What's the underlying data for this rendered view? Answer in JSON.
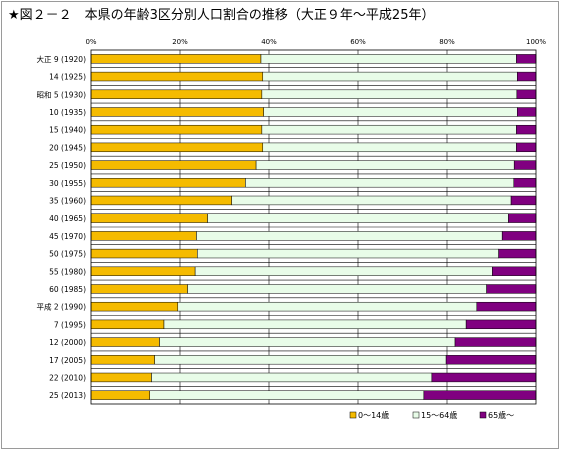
{
  "chart_data": {
    "type": "bar",
    "orientation": "horizontal",
    "stacked": "percent",
    "title": "★図２－２　本県の年齢3区分別人口割合の推移（大正９年～平成25年）",
    "x_ticks": [
      "0%",
      "20%",
      "40%",
      "60%",
      "80%",
      "100%"
    ],
    "xlim": [
      0,
      100
    ],
    "grid": true,
    "legend_position": "bottom-right",
    "categories": [
      "大正 9 (1920)",
      "14 (1925)",
      "昭和 5 (1930)",
      "10 (1935)",
      "15 (1940)",
      "20 (1945)",
      "25 (1950)",
      "30 (1955)",
      "35 (1960)",
      "40 (1965)",
      "45 (1970)",
      "50 (1975)",
      "55 (1980)",
      "60 (1985)",
      "平成 2 (1990)",
      "7 (1995)",
      "12 (2000)",
      "17 (2005)",
      "22 (2010)",
      "25 (2013)"
    ],
    "series": [
      {
        "name": "0～14歳",
        "color": "#f5bb00",
        "values": [
          38.2,
          38.6,
          38.4,
          38.8,
          38.4,
          38.6,
          37.1,
          34.7,
          31.6,
          26.2,
          23.7,
          23.9,
          23.4,
          21.7,
          19.5,
          16.4,
          15.4,
          14.3,
          13.6,
          13.2
        ]
      },
      {
        "name": "15～64歳",
        "color": "#e8fce8",
        "values": [
          57.4,
          57.2,
          57.3,
          57.0,
          57.2,
          57.0,
          58.0,
          60.3,
          62.8,
          67.6,
          68.7,
          67.7,
          66.8,
          67.2,
          67.2,
          67.9,
          66.4,
          65.5,
          63.0,
          61.6
        ]
      },
      {
        "name": "65歳～",
        "color": "#800080",
        "values": [
          4.4,
          4.2,
          4.3,
          4.2,
          4.4,
          4.4,
          4.9,
          5.0,
          5.6,
          6.2,
          7.6,
          8.4,
          9.8,
          11.1,
          13.3,
          15.7,
          18.2,
          20.2,
          23.4,
          25.2
        ]
      }
    ]
  }
}
